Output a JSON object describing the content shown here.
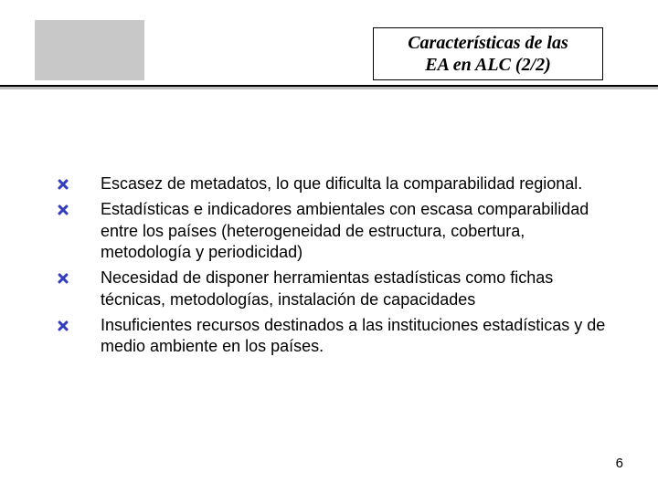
{
  "title": {
    "line1": "Características de las",
    "line2": "EA en ALC  (2/2)"
  },
  "bullets": [
    "Escasez de metadatos, lo que dificulta la comparabilidad regional.",
    "Estadísticas e indicadores ambientales con escasa comparabilidad entre los países (heterogeneidad de estructura, cobertura, metodología y periodicidad)",
    "Necesidad de disponer herramientas estadísticas como fichas técnicas, metodologías, instalación de capacidades",
    "Insuficientes recursos destinados a las instituciones estadísticas y de medio ambiente en los países."
  ],
  "page_number": "6",
  "colors": {
    "bullet_icon": "#343dbc",
    "grey_block": "#c8c8c8",
    "divider": "#000000",
    "background": "#ffffff"
  }
}
